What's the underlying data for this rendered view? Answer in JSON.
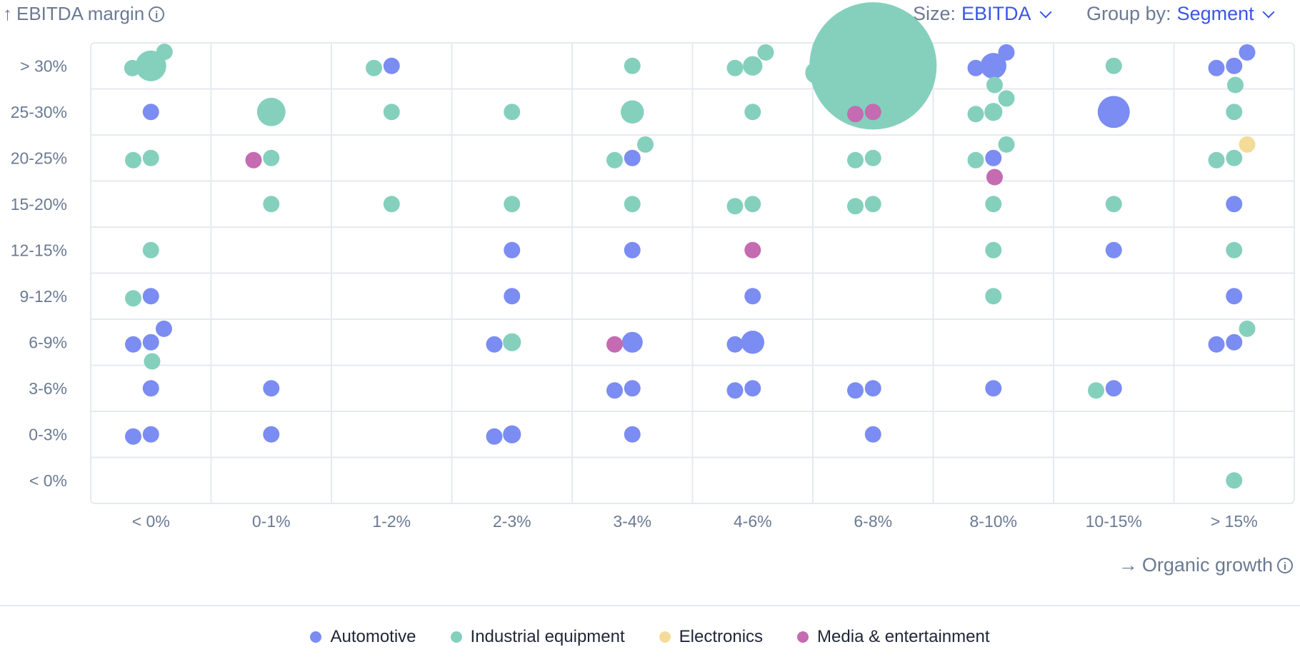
{
  "header": {
    "y_axis_title": "EBITDA margin",
    "size_label": "Size:",
    "size_value": "EBITDA",
    "group_label": "Group by:",
    "group_value": "Segment"
  },
  "footer": {
    "x_axis_title": "Organic growth"
  },
  "colors": {
    "Automotive": "#7b8cf2",
    "Industrial equipment": "#84d0bd",
    "Electronics": "#f3dc9a",
    "Media & entertainment": "#c46bb1",
    "grid": "#e6e9ef",
    "text": "#6b7a93"
  },
  "legend": [
    {
      "label": "Automotive",
      "color": "#7b8cf2"
    },
    {
      "label": "Industrial equipment",
      "color": "#84d0bd"
    },
    {
      "label": "Electronics",
      "color": "#f3dc9a"
    },
    {
      "label": "Media & entertainment",
      "color": "#c46bb1"
    }
  ],
  "chart_data": {
    "type": "scatter",
    "subtype": "binned bubble chart",
    "xlabel": "Organic growth",
    "ylabel": "EBITDA margin",
    "size_by": "EBITDA",
    "group_by": "Segment",
    "x_categories": [
      "< 0%",
      "0-1%",
      "1-2%",
      "2-3%",
      "3-4%",
      "4-6%",
      "6-8%",
      "8-10%",
      "10-15%",
      "> 15%"
    ],
    "y_categories": [
      "< 0%",
      "0-3%",
      "3-6%",
      "6-9%",
      "9-12%",
      "12-15%",
      "15-20%",
      "20-25%",
      "25-30%",
      "> 30%"
    ],
    "series": [
      {
        "name": "Automotive",
        "points": [
          {
            "x": "< 0%",
            "y": "25-30%",
            "size": 1
          },
          {
            "x": "< 0%",
            "y": "9-12%",
            "size": 1
          },
          {
            "x": "< 0%",
            "y": "6-9%",
            "size": 1
          },
          {
            "x": "< 0%",
            "y": "6-9%",
            "size": 1
          },
          {
            "x": "< 0%",
            "y": "6-9%",
            "size": 1
          },
          {
            "x": "< 0%",
            "y": "3-6%",
            "size": 1
          },
          {
            "x": "< 0%",
            "y": "0-3%",
            "size": 1
          },
          {
            "x": "< 0%",
            "y": "0-3%",
            "size": 1
          },
          {
            "x": "0-1%",
            "y": "3-6%",
            "size": 1
          },
          {
            "x": "0-1%",
            "y": "0-3%",
            "size": 1
          },
          {
            "x": "1-2%",
            "y": "> 30%",
            "size": 1
          },
          {
            "x": "2-3%",
            "y": "12-15%",
            "size": 1
          },
          {
            "x": "2-3%",
            "y": "9-12%",
            "size": 1
          },
          {
            "x": "2-3%",
            "y": "6-9%",
            "size": 1
          },
          {
            "x": "2-3%",
            "y": "0-3%",
            "size": 1.2
          },
          {
            "x": "2-3%",
            "y": "0-3%",
            "size": 1
          },
          {
            "x": "3-4%",
            "y": "20-25%",
            "size": 1
          },
          {
            "x": "3-4%",
            "y": "12-15%",
            "size": 1
          },
          {
            "x": "3-4%",
            "y": "6-9%",
            "size": 1.6
          },
          {
            "x": "3-4%",
            "y": "3-6%",
            "size": 1
          },
          {
            "x": "3-4%",
            "y": "3-6%",
            "size": 1
          },
          {
            "x": "3-4%",
            "y": "0-3%",
            "size": 1
          },
          {
            "x": "4-6%",
            "y": "9-12%",
            "size": 1
          },
          {
            "x": "4-6%",
            "y": "6-9%",
            "size": 2
          },
          {
            "x": "4-6%",
            "y": "6-9%",
            "size": 1
          },
          {
            "x": "4-6%",
            "y": "3-6%",
            "size": 1
          },
          {
            "x": "4-6%",
            "y": "3-6%",
            "size": 1
          },
          {
            "x": "6-8%",
            "y": "3-6%",
            "size": 1
          },
          {
            "x": "6-8%",
            "y": "3-6%",
            "size": 1
          },
          {
            "x": "6-8%",
            "y": "0-3%",
            "size": 1
          },
          {
            "x": "8-10%",
            "y": "> 30%",
            "size": 1
          },
          {
            "x": "8-10%",
            "y": "> 30%",
            "size": 2.5
          },
          {
            "x": "8-10%",
            "y": "> 30%",
            "size": 1
          },
          {
            "x": "8-10%",
            "y": "20-25%",
            "size": 1
          },
          {
            "x": "8-10%",
            "y": "3-6%",
            "size": 1
          },
          {
            "x": "10-15%",
            "y": "25-30%",
            "size": 3.8
          },
          {
            "x": "10-15%",
            "y": "12-15%",
            "size": 1
          },
          {
            "x": "10-15%",
            "y": "3-6%",
            "size": 1
          },
          {
            "x": "> 15%",
            "y": "> 30%",
            "size": 1
          },
          {
            "x": "> 15%",
            "y": "> 30%",
            "size": 1
          },
          {
            "x": "> 15%",
            "y": "> 30%",
            "size": 1
          },
          {
            "x": "> 15%",
            "y": "15-20%",
            "size": 1
          },
          {
            "x": "> 15%",
            "y": "9-12%",
            "size": 1
          },
          {
            "x": "> 15%",
            "y": "6-9%",
            "size": 1
          },
          {
            "x": "> 15%",
            "y": "6-9%",
            "size": 1
          }
        ]
      },
      {
        "name": "Industrial equipment",
        "points": [
          {
            "x": "< 0%",
            "y": "> 30%",
            "size": 1
          },
          {
            "x": "< 0%",
            "y": "> 30%",
            "size": 1
          },
          {
            "x": "< 0%",
            "y": "> 30%",
            "size": 3.5
          },
          {
            "x": "< 0%",
            "y": "20-25%",
            "size": 1
          },
          {
            "x": "< 0%",
            "y": "20-25%",
            "size": 1
          },
          {
            "x": "< 0%",
            "y": "12-15%",
            "size": 1
          },
          {
            "x": "< 0%",
            "y": "9-12%",
            "size": 1
          },
          {
            "x": "< 0%",
            "y": "6-9%",
            "size": 1
          },
          {
            "x": "0-1%",
            "y": "25-30%",
            "size": 3
          },
          {
            "x": "0-1%",
            "y": "20-25%",
            "size": 1
          },
          {
            "x": "0-1%",
            "y": "15-20%",
            "size": 1
          },
          {
            "x": "1-2%",
            "y": "> 30%",
            "size": 1
          },
          {
            "x": "1-2%",
            "y": "25-30%",
            "size": 1
          },
          {
            "x": "1-2%",
            "y": "15-20%",
            "size": 1
          },
          {
            "x": "2-3%",
            "y": "25-30%",
            "size": 1
          },
          {
            "x": "2-3%",
            "y": "15-20%",
            "size": 1
          },
          {
            "x": "2-3%",
            "y": "6-9%",
            "size": 1.2
          },
          {
            "x": "3-4%",
            "y": "> 30%",
            "size": 1
          },
          {
            "x": "3-4%",
            "y": "25-30%",
            "size": 2
          },
          {
            "x": "3-4%",
            "y": "20-25%",
            "size": 1
          },
          {
            "x": "3-4%",
            "y": "20-25%",
            "size": 1
          },
          {
            "x": "3-4%",
            "y": "15-20%",
            "size": 1
          },
          {
            "x": "4-6%",
            "y": "> 30%",
            "size": 1
          },
          {
            "x": "4-6%",
            "y": "> 30%",
            "size": 1
          },
          {
            "x": "4-6%",
            "y": "> 30%",
            "size": 1.4
          },
          {
            "x": "4-6%",
            "y": "25-30%",
            "size": 1
          },
          {
            "x": "4-6%",
            "y": "15-20%",
            "size": 1
          },
          {
            "x": "4-6%",
            "y": "15-20%",
            "size": 1
          },
          {
            "x": "6-8%",
            "y": "> 30%",
            "size": 1.8
          },
          {
            "x": "6-8%",
            "y": "> 30%",
            "size": 60
          },
          {
            "x": "6-8%",
            "y": "> 30%",
            "size": 1
          },
          {
            "x": "6-8%",
            "y": "> 30%",
            "size": 1
          },
          {
            "x": "6-8%",
            "y": "20-25%",
            "size": 1
          },
          {
            "x": "6-8%",
            "y": "20-25%",
            "size": 1
          },
          {
            "x": "6-8%",
            "y": "15-20%",
            "size": 1
          },
          {
            "x": "6-8%",
            "y": "15-20%",
            "size": 1
          },
          {
            "x": "8-10%",
            "y": "> 30%",
            "size": 1
          },
          {
            "x": "8-10%",
            "y": "25-30%",
            "size": 1
          },
          {
            "x": "8-10%",
            "y": "25-30%",
            "size": 1
          },
          {
            "x": "8-10%",
            "y": "25-30%",
            "size": 1.2
          },
          {
            "x": "8-10%",
            "y": "20-25%",
            "size": 1
          },
          {
            "x": "8-10%",
            "y": "20-25%",
            "size": 1
          },
          {
            "x": "8-10%",
            "y": "15-20%",
            "size": 1
          },
          {
            "x": "8-10%",
            "y": "12-15%",
            "size": 1
          },
          {
            "x": "8-10%",
            "y": "9-12%",
            "size": 1
          },
          {
            "x": "10-15%",
            "y": "> 30%",
            "size": 1
          },
          {
            "x": "10-15%",
            "y": "15-20%",
            "size": 1
          },
          {
            "x": "10-15%",
            "y": "3-6%",
            "size": 1
          },
          {
            "x": "> 15%",
            "y": "> 30%",
            "size": 1
          },
          {
            "x": "> 15%",
            "y": "25-30%",
            "size": 1
          },
          {
            "x": "> 15%",
            "y": "20-25%",
            "size": 1
          },
          {
            "x": "> 15%",
            "y": "20-25%",
            "size": 1
          },
          {
            "x": "> 15%",
            "y": "12-15%",
            "size": 1
          },
          {
            "x": "> 15%",
            "y": "6-9%",
            "size": 1
          },
          {
            "x": "> 15%",
            "y": "< 0%",
            "size": 1
          }
        ]
      },
      {
        "name": "Electronics",
        "points": [
          {
            "x": "> 15%",
            "y": "20-25%",
            "size": 1
          }
        ]
      },
      {
        "name": "Media & entertainment",
        "points": [
          {
            "x": "0-1%",
            "y": "20-25%",
            "size": 1
          },
          {
            "x": "3-4%",
            "y": "6-9%",
            "size": 1
          },
          {
            "x": "4-6%",
            "y": "12-15%",
            "size": 1
          },
          {
            "x": "6-8%",
            "y": "25-30%",
            "size": 1
          },
          {
            "x": "6-8%",
            "y": "25-30%",
            "size": 1
          },
          {
            "x": "8-10%",
            "y": "20-25%",
            "size": 1
          }
        ]
      }
    ]
  }
}
